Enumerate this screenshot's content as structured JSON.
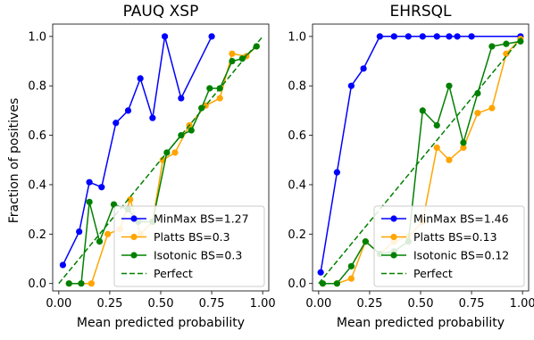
{
  "ylabel": "Fraction of positives",
  "chart_data": [
    {
      "type": "line",
      "title": "PAUQ XSP",
      "xlabel": "Mean predicted probability",
      "ylabel": "Fraction of positives",
      "xlim": [
        -0.03,
        1.03
      ],
      "ylim": [
        -0.03,
        1.05
      ],
      "xticks": [
        "0.00",
        "0.25",
        "0.50",
        "0.75",
        "1.00"
      ],
      "yticks": [
        "0.0",
        "0.2",
        "0.4",
        "0.6",
        "0.8",
        "1.0"
      ],
      "legend_position": "lower-right",
      "series": [
        {
          "name": "MinMax BS=1.27",
          "color": "#0000ff",
          "x": [
            0.02,
            0.1,
            0.15,
            0.21,
            0.28,
            0.34,
            0.4,
            0.46,
            0.52,
            0.6,
            0.75
          ],
          "y": [
            0.075,
            0.21,
            0.41,
            0.39,
            0.65,
            0.7,
            0.83,
            0.67,
            1.0,
            0.75,
            1.0
          ]
        },
        {
          "name": "Platts BS=0.3",
          "color": "#ffa500",
          "x": [
            0.05,
            0.11,
            0.16,
            0.24,
            0.3,
            0.35,
            0.4,
            0.46,
            0.51,
            0.57,
            0.64,
            0.72,
            0.79,
            0.85,
            0.92,
            0.97
          ],
          "y": [
            0.0,
            0.0,
            0.0,
            0.2,
            0.22,
            0.34,
            0.2,
            0.25,
            0.5,
            0.53,
            0.64,
            0.72,
            0.75,
            0.93,
            0.92,
            0.96
          ]
        },
        {
          "name": "Isotonic BS=0.3",
          "color": "#008000",
          "x": [
            0.05,
            0.11,
            0.15,
            0.2,
            0.27,
            0.34,
            0.39,
            0.46,
            0.53,
            0.6,
            0.65,
            0.7,
            0.74,
            0.79,
            0.85,
            0.9,
            0.97
          ],
          "y": [
            0.0,
            0.0,
            0.33,
            0.17,
            0.32,
            0.3,
            0.25,
            0.25,
            0.53,
            0.6,
            0.62,
            0.71,
            0.79,
            0.79,
            0.9,
            0.91,
            0.96
          ]
        },
        {
          "name": "Perfect",
          "color": "#008000",
          "dashed": true,
          "x": [
            0.0,
            1.0
          ],
          "y": [
            0.0,
            1.0
          ]
        }
      ]
    },
    {
      "type": "line",
      "title": "EHRSQL",
      "xlabel": "Mean predicted probability",
      "ylabel": "",
      "xlim": [
        -0.03,
        1.03
      ],
      "ylim": [
        -0.03,
        1.05
      ],
      "xticks": [
        "0.00",
        "0.25",
        "0.50",
        "0.75",
        "1.00"
      ],
      "yticks": [
        "0.0",
        "0.2",
        "0.4",
        "0.6",
        "0.8",
        "1.0"
      ],
      "legend_position": "lower-right",
      "series": [
        {
          "name": "MinMax BS=1.46",
          "color": "#0000ff",
          "x": [
            0.01,
            0.09,
            0.16,
            0.22,
            0.3,
            0.37,
            0.44,
            0.51,
            0.58,
            0.64,
            0.68,
            0.75,
            0.99
          ],
          "y": [
            0.045,
            0.45,
            0.8,
            0.87,
            1.0,
            1.0,
            1.0,
            1.0,
            1.0,
            1.0,
            1.0,
            1.0,
            1.0
          ]
        },
        {
          "name": "Platts BS=0.13",
          "color": "#ffa500",
          "x": [
            0.02,
            0.09,
            0.16,
            0.23,
            0.3,
            0.37,
            0.44,
            0.51,
            0.58,
            0.64,
            0.71,
            0.78,
            0.85,
            0.92,
            0.99
          ],
          "y": [
            0.0,
            0.0,
            0.02,
            0.17,
            0.12,
            0.17,
            0.19,
            0.25,
            0.55,
            0.5,
            0.55,
            0.69,
            0.71,
            0.93,
            0.99
          ]
        },
        {
          "name": "Isotonic BS=0.12",
          "color": "#008000",
          "x": [
            0.02,
            0.09,
            0.16,
            0.23,
            0.3,
            0.37,
            0.44,
            0.51,
            0.58,
            0.64,
            0.71,
            0.78,
            0.85,
            0.92,
            0.99
          ],
          "y": [
            0.0,
            0.0,
            0.07,
            0.17,
            0.12,
            0.13,
            0.17,
            0.7,
            0.64,
            0.8,
            0.57,
            0.77,
            0.96,
            0.97,
            0.98
          ]
        },
        {
          "name": "Perfect",
          "color": "#008000",
          "dashed": true,
          "x": [
            0.0,
            1.0
          ],
          "y": [
            0.0,
            1.0
          ]
        }
      ]
    }
  ]
}
